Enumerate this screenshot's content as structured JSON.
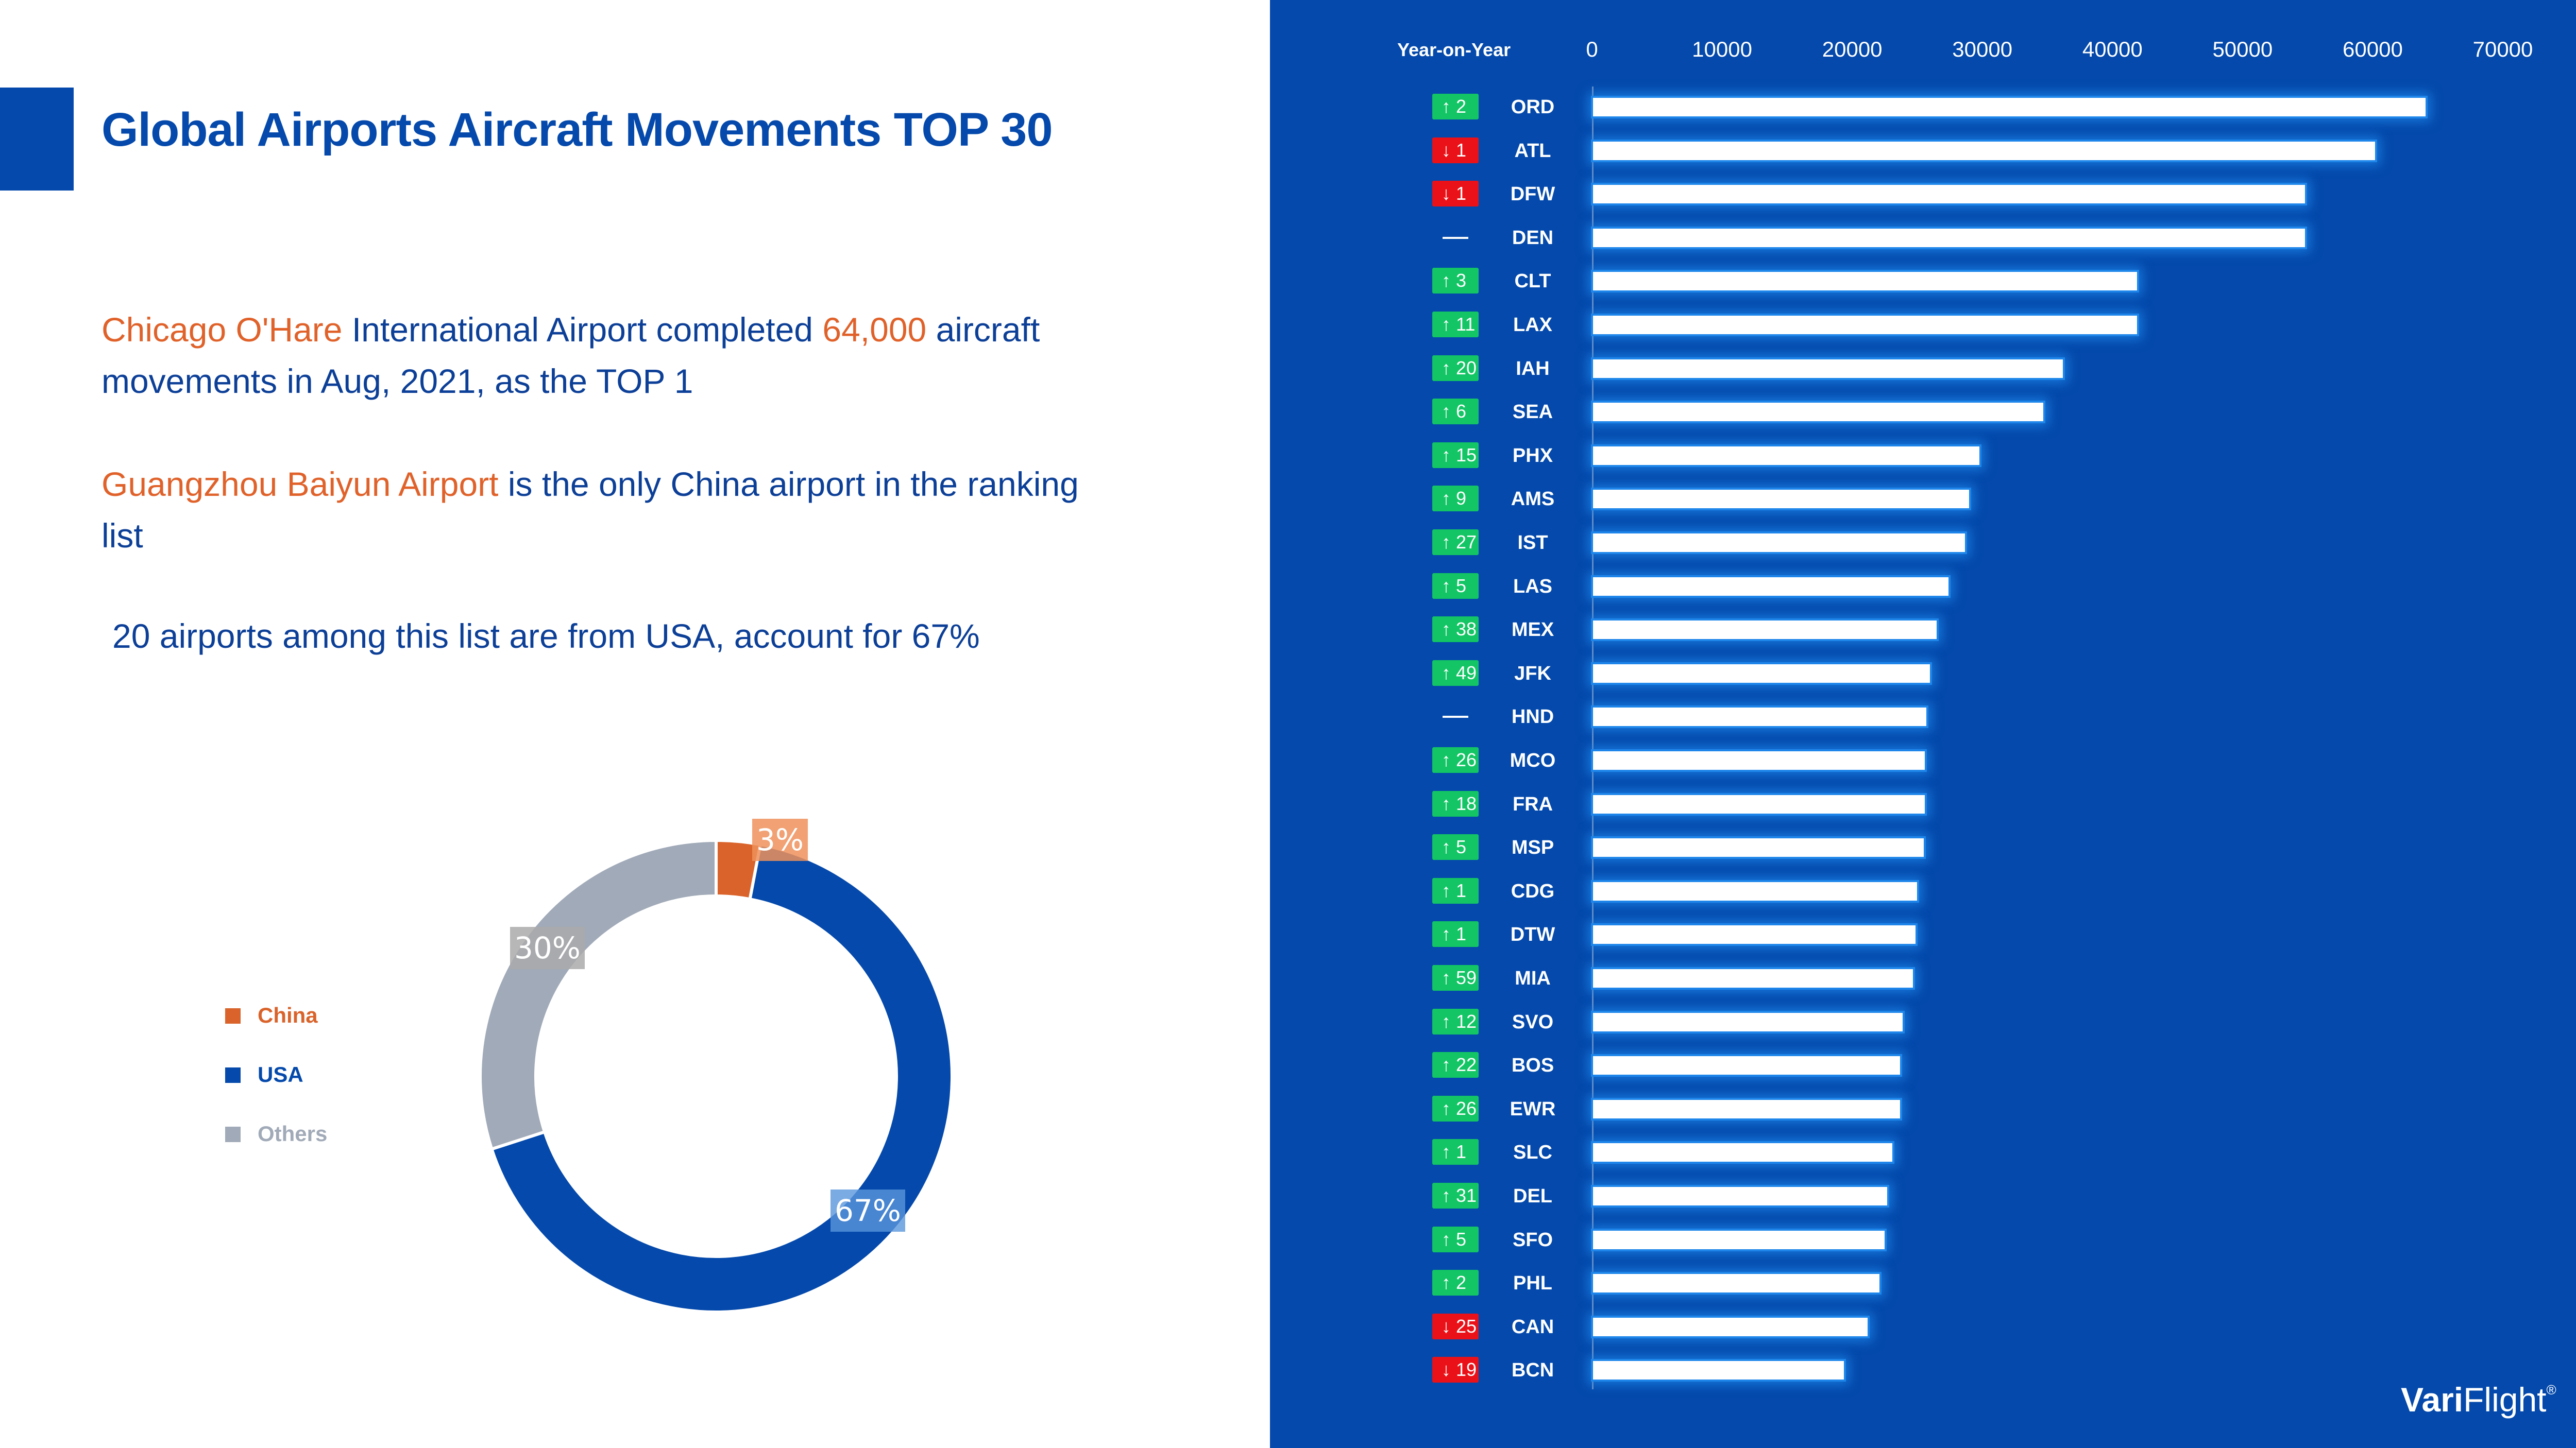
{
  "title": "Global Airports Aircraft Movements TOP 30",
  "paragraphs": {
    "p1": {
      "hl1": "Chicago O'Hare",
      "t1": " International Airport completed ",
      "hl2": "64,000",
      "t2": " aircraft movements in Aug, 2021, as the TOP 1"
    },
    "p2": {
      "hl1": "Guangzhou Baiyun Airport",
      "t1": " is the only China airport in the ranking list"
    },
    "p3": {
      "t1": "20 airports among this list are from USA, account for 67%"
    }
  },
  "colors": {
    "brand_blue": "#0449ab",
    "highlight_orange": "#e0622a",
    "china": "#d9632a",
    "usa": "#0449ab",
    "others": "#a1aab8",
    "badge_up": "#13c564",
    "badge_down": "#ea1218"
  },
  "legend": [
    {
      "label": "China",
      "color": "#d9632a"
    },
    {
      "label": "USA",
      "color": "#0449ab"
    },
    {
      "label": "Others",
      "color": "#a1aab8"
    }
  ],
  "axis": {
    "yoy_label": "Year-on-Year",
    "ticks": [
      "0",
      "10000",
      "20000",
      "30000",
      "40000",
      "50000",
      "60000",
      "70000"
    ]
  },
  "logo": {
    "bold": "Vari",
    "light": "Flight",
    "mark": "®"
  },
  "chart_data": [
    {
      "type": "bar",
      "orientation": "horizontal",
      "title": "Global Airports Aircraft Movements TOP 30",
      "xlabel": "",
      "ylabel": "",
      "xlim": [
        0,
        70000
      ],
      "x_ticks": [
        0,
        10000,
        20000,
        30000,
        40000,
        50000,
        60000,
        70000
      ],
      "grid": false,
      "categories": [
        "ORD",
        "ATL",
        "DFW",
        "DEN",
        "CLT",
        "LAX",
        "IAH",
        "SEA",
        "PHX",
        "AMS",
        "IST",
        "LAS",
        "MEX",
        "JFK",
        "HND",
        "MCO",
        "FRA",
        "MSP",
        "CDG",
        "DTW",
        "MIA",
        "SVO",
        "BOS",
        "EWR",
        "SLC",
        "DEL",
        "SFO",
        "PHL",
        "CAN",
        "BCN"
      ],
      "values": [
        64000,
        60100,
        54700,
        54700,
        41800,
        41800,
        36100,
        34600,
        29700,
        28900,
        28600,
        27300,
        26400,
        25900,
        25600,
        25500,
        25500,
        25400,
        24900,
        24800,
        24600,
        23800,
        23600,
        23600,
        23000,
        22600,
        22400,
        22000,
        21100,
        19300
      ],
      "year_on_year_rank_change": [
        {
          "dir": "up",
          "text": "↑ 2"
        },
        {
          "dir": "down",
          "text": "↓ 1"
        },
        {
          "dir": "down",
          "text": "↓ 1"
        },
        {
          "dir": "flat",
          "text": ""
        },
        {
          "dir": "up",
          "text": "↑ 3"
        },
        {
          "dir": "up",
          "text": "↑ 11"
        },
        {
          "dir": "up",
          "text": "↑ 20"
        },
        {
          "dir": "up",
          "text": "↑ 6"
        },
        {
          "dir": "up",
          "text": "↑ 15"
        },
        {
          "dir": "up",
          "text": "↑ 9"
        },
        {
          "dir": "up",
          "text": "↑ 27"
        },
        {
          "dir": "up",
          "text": "↑ 5"
        },
        {
          "dir": "up",
          "text": "↑ 38"
        },
        {
          "dir": "up",
          "text": "↑ 49"
        },
        {
          "dir": "flat",
          "text": ""
        },
        {
          "dir": "up",
          "text": "↑ 26"
        },
        {
          "dir": "up",
          "text": "↑ 18"
        },
        {
          "dir": "up",
          "text": "↑ 5"
        },
        {
          "dir": "up",
          "text": "↑ 1"
        },
        {
          "dir": "up",
          "text": "↑ 1"
        },
        {
          "dir": "up",
          "text": "↑ 59"
        },
        {
          "dir": "up",
          "text": "↑ 12"
        },
        {
          "dir": "up",
          "text": "↑ 22"
        },
        {
          "dir": "up",
          "text": "↑ 26"
        },
        {
          "dir": "up",
          "text": "↑ 1"
        },
        {
          "dir": "up",
          "text": "↑ 31"
        },
        {
          "dir": "up",
          "text": "↑ 5"
        },
        {
          "dir": "up",
          "text": "↑ 2"
        },
        {
          "dir": "down",
          "text": "↓ 25"
        },
        {
          "dir": "down",
          "text": "↓ 19"
        }
      ],
      "legend_position": "none"
    },
    {
      "type": "pie",
      "subtype": "donut",
      "categories": [
        "China",
        "USA",
        "Others"
      ],
      "values": [
        3,
        67,
        30
      ],
      "labels": [
        "3%",
        "67%",
        "30%"
      ],
      "legend": [
        "China",
        "USA",
        "Others"
      ],
      "legend_position": "left"
    }
  ]
}
